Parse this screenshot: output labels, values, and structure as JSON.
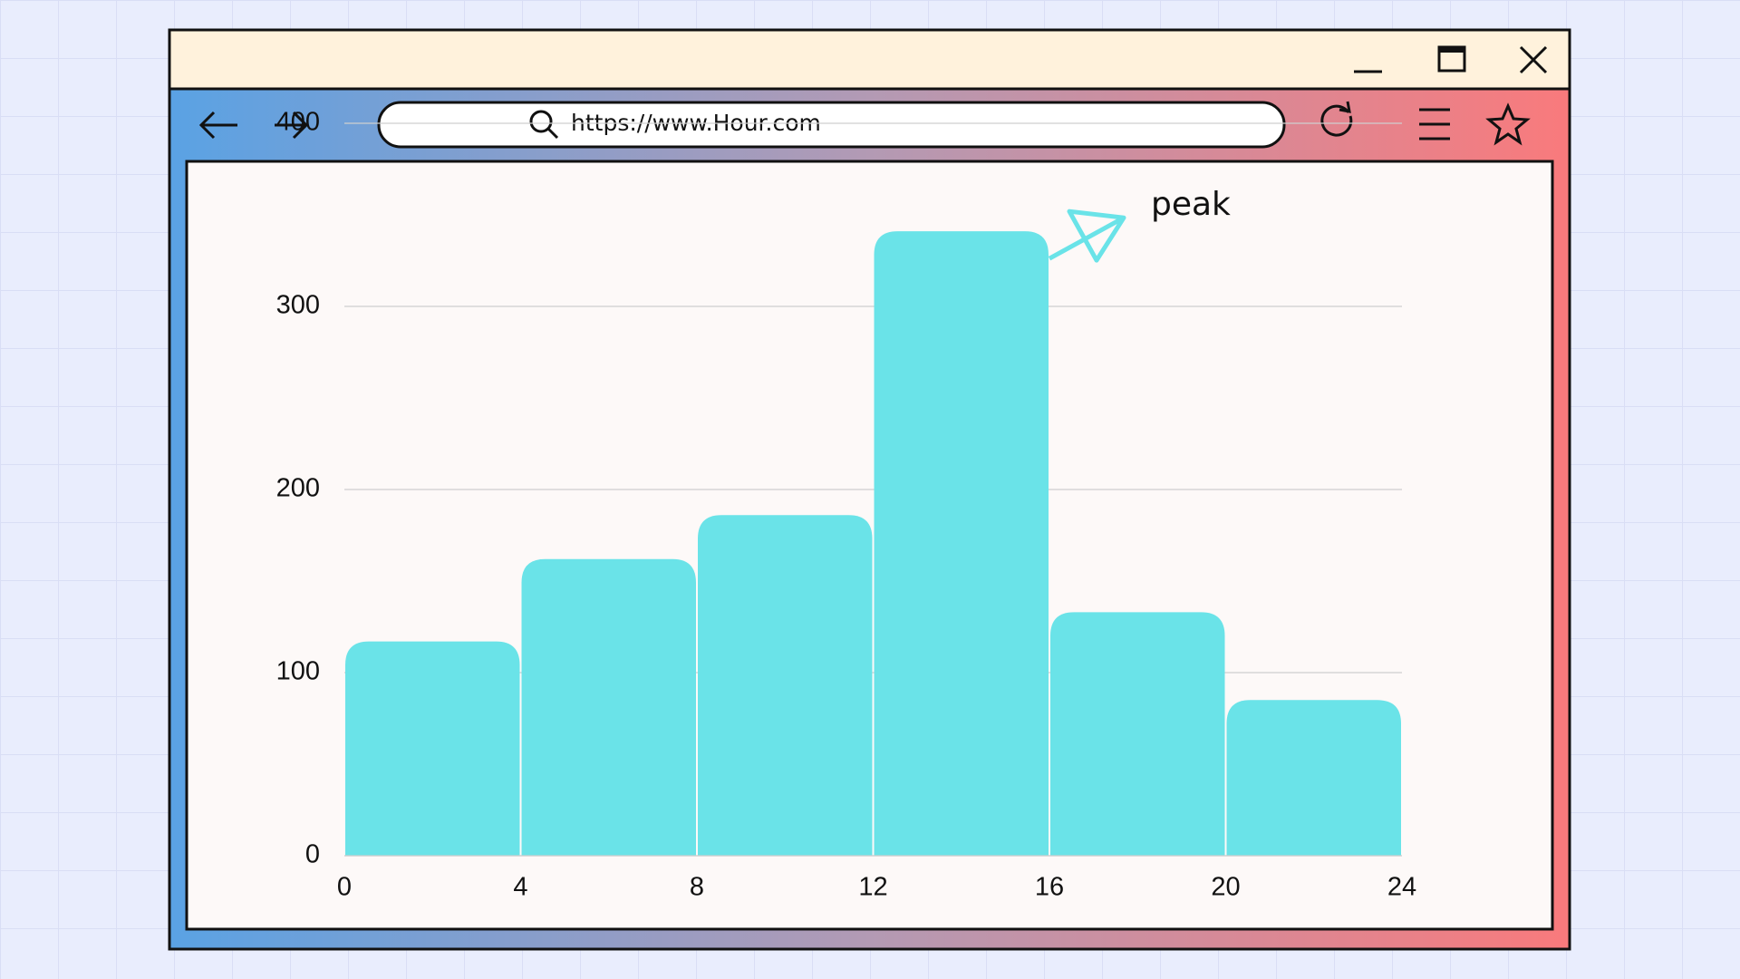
{
  "browser": {
    "url": "https://www.Hour.com"
  },
  "chart_data": {
    "type": "histogram",
    "bins": [
      0,
      4,
      8,
      12,
      16,
      20,
      24
    ],
    "values": [
      117,
      162,
      186,
      341,
      133,
      85
    ],
    "color": "#6ae3e8",
    "xlim": [
      0,
      24
    ],
    "xticks": [
      0,
      4,
      8,
      12,
      16,
      20,
      24
    ],
    "ylim": [
      0,
      400
    ],
    "yticks": [
      0,
      100,
      200,
      300,
      400
    ],
    "grid": true,
    "annotation": "peak"
  }
}
